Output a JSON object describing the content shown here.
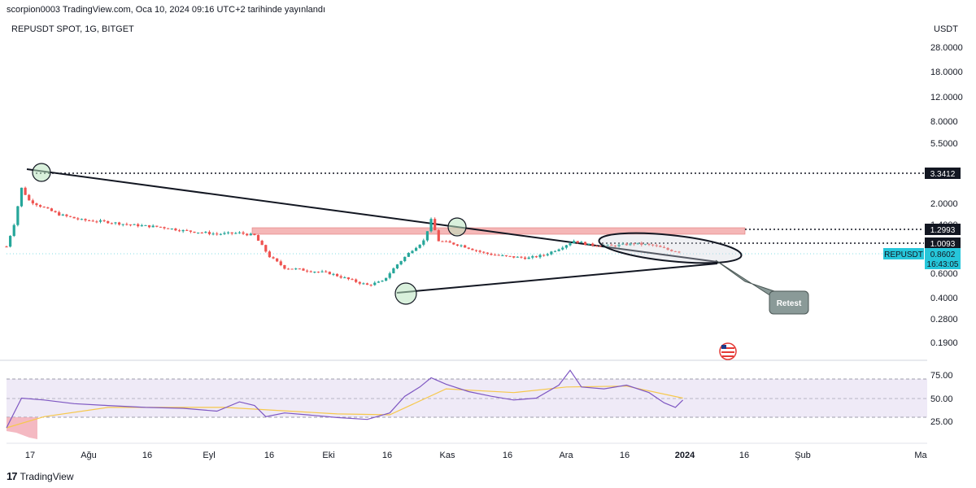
{
  "header": {
    "published": "scorpion0003 TradingView.com, Oca 10, 2024 09:16 UTC+2 tarihinde yayınlandı",
    "symbol": "REPUSDT SPOT, 1G, BITGET",
    "currency": "USDT"
  },
  "footer": {
    "brand": "TradingView"
  },
  "chart_data": [
    {
      "type": "candlestick",
      "title": "REPUSDT SPOT, 1G, BITGET",
      "y_scale": "log",
      "y_ticks": [
        "28.0000",
        "18.0000",
        "12.0000",
        "8.0000",
        "5.5000",
        "2.0000",
        "1.4000",
        "0.6000",
        "0.4000",
        "0.2800",
        "0.1900"
      ],
      "x_ticks": [
        "17",
        "Ağu",
        "16",
        "Eyl",
        "16",
        "Eki",
        "16",
        "Kas",
        "16",
        "Ara",
        "16",
        "2024",
        "16",
        "Şub",
        "Ma"
      ],
      "price_labels": [
        {
          "text": "3.3412",
          "value": 3.3412,
          "style": "level"
        },
        {
          "text": "1.2993",
          "value": 1.2993,
          "style": "level"
        },
        {
          "text": "1.0093",
          "value": 1.0093,
          "style": "level"
        }
      ],
      "last_price": {
        "symbol": "REPUSDT",
        "price": "0.8602",
        "countdown": "16:43:05",
        "color": "#26c6da"
      },
      "resistance_zone": {
        "low": 1.23,
        "high": 1.36,
        "color": "#f5b7b7"
      },
      "annotation": "Retest",
      "close_path": [
        [
          "Jul 14",
          0.95
        ],
        [
          "Jul 16",
          1.4
        ],
        [
          "Jul 18",
          2.6
        ],
        [
          "Jul 20",
          2.1
        ],
        [
          "Jul 24",
          1.85
        ],
        [
          "Jul 28",
          1.65
        ],
        [
          "Aug 3",
          1.5
        ],
        [
          "Aug 10",
          1.45
        ],
        [
          "Aug 16",
          1.38
        ],
        [
          "Aug 24",
          1.33
        ],
        [
          "Aug 30",
          1.25
        ],
        [
          "Sep 8",
          1.18
        ],
        [
          "Sep 14",
          1.2
        ],
        [
          "Sep 18",
          1.15
        ],
        [
          "Sep 22",
          0.8
        ],
        [
          "Sep 26",
          0.66
        ],
        [
          "Oct 2",
          0.63
        ],
        [
          "Oct 8",
          0.6
        ],
        [
          "Oct 14",
          0.53
        ],
        [
          "Oct 18",
          0.49
        ],
        [
          "Oct 22",
          0.52
        ],
        [
          "Oct 26",
          0.7
        ],
        [
          "Oct 30",
          0.9
        ],
        [
          "Nov 2",
          1.05
        ],
        [
          "Nov 4",
          1.5
        ],
        [
          "Nov 6",
          1.05
        ],
        [
          "Nov 12",
          0.97
        ],
        [
          "Nov 18",
          0.85
        ],
        [
          "Nov 24",
          0.8
        ],
        [
          "Nov 30",
          0.78
        ],
        [
          "Dec 4",
          0.82
        ],
        [
          "Dec 8",
          0.92
        ],
        [
          "Dec 12",
          1.05
        ],
        [
          "Dec 16",
          0.98
        ],
        [
          "Dec 22",
          0.96
        ],
        [
          "Dec 28",
          1.0
        ],
        [
          "Jan 2",
          0.97
        ],
        [
          "Jan 6",
          0.9
        ],
        [
          "Jan 10",
          0.86
        ]
      ]
    },
    {
      "type": "line",
      "title": "RSI",
      "y_ticks": [
        "75.00",
        "50.00",
        "25.00"
      ],
      "overbought": 70,
      "oversold": 30,
      "rsi": [
        [
          "Jul 14",
          18
        ],
        [
          "Jul 18",
          50
        ],
        [
          "Jul 24",
          48
        ],
        [
          "Aug 1",
          44
        ],
        [
          "Aug 10",
          42
        ],
        [
          "Aug 20",
          40
        ],
        [
          "Aug 30",
          39
        ],
        [
          "Sep 8",
          36
        ],
        [
          "Sep 14",
          46
        ],
        [
          "Sep 18",
          42
        ],
        [
          "Sep 21",
          30
        ],
        [
          "Sep 26",
          34
        ],
        [
          "Oct 2",
          32
        ],
        [
          "Oct 10",
          29
        ],
        [
          "Oct 18",
          27
        ],
        [
          "Oct 24",
          34
        ],
        [
          "Oct 28",
          52
        ],
        [
          "Nov 1",
          62
        ],
        [
          "Nov 4",
          72
        ],
        [
          "Nov 8",
          65
        ],
        [
          "Nov 14",
          57
        ],
        [
          "Nov 20",
          52
        ],
        [
          "Nov 26",
          48
        ],
        [
          "Dec 2",
          50
        ],
        [
          "Dec 8",
          64
        ],
        [
          "Dec 11",
          80
        ],
        [
          "Dec 14",
          62
        ],
        [
          "Dec 20",
          60
        ],
        [
          "Dec 26",
          64
        ],
        [
          "Jan 1",
          56
        ],
        [
          "Jan 5",
          45
        ],
        [
          "Jan 8",
          40
        ],
        [
          "Jan 10",
          48
        ]
      ],
      "rsi_ma": [
        [
          "Jul 14",
          18
        ],
        [
          "Jul 24",
          30
        ],
        [
          "Aug 10",
          40
        ],
        [
          "Sep 10",
          40
        ],
        [
          "Oct 10",
          33
        ],
        [
          "Oct 24",
          32
        ],
        [
          "Nov 8",
          60
        ],
        [
          "Nov 26",
          56
        ],
        [
          "Dec 10",
          62
        ],
        [
          "Dec 26",
          63
        ],
        [
          "Jan 10",
          50
        ]
      ]
    }
  ]
}
